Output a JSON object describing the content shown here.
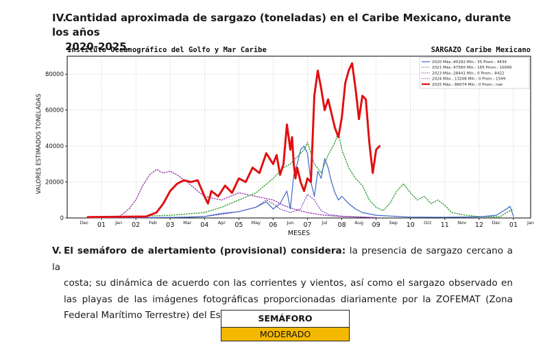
{
  "section_iv": {
    "number": "IV.",
    "title_line1": "Cantidad aproximada de sargazo (toneladas) en el Caribe Mexicano, durante los años",
    "title_line2": "2020-2025."
  },
  "section_v": {
    "number": "V.",
    "bold_lead": "El semáforo de alertamiento (provisional) considera:",
    "text_line1_rest": "la presencia de sargazo cercano a la",
    "text_rest": "costa; su dinámica de acuerdo con las corrientes y vientos, así como el sargazo observado en las playas de las imágenes fotográficas proporcionadas diariamente por la ZOFEMAT (Zona Federal Marítimo Terrestre) del Estado de Quintana Roo."
  },
  "semaforo": {
    "header": "SEMÁFORO",
    "value": "MODERADO",
    "color": "#f5b800"
  },
  "chart_data": {
    "type": "line",
    "left_title": "Instituto Oceanográfico del Golfo y Mar Caribe",
    "right_title": "SARGAZO Caribe Mexicano",
    "xlabel": "MESES",
    "ylabel": "VALORES ESTIMADOS TONELADAS",
    "ylim": [
      0,
      90000
    ],
    "yticks": [
      0,
      20000,
      40000,
      60000,
      80000
    ],
    "xlim": [
      0,
      13.5
    ],
    "grid": true,
    "month_ticks": [
      {
        "x": 0.5,
        "num": "",
        "name": "Dec"
      },
      {
        "x": 1,
        "num": "01",
        "name": ""
      },
      {
        "x": 1.5,
        "num": "",
        "name": "Jan"
      },
      {
        "x": 2,
        "num": "02",
        "name": ""
      },
      {
        "x": 2.5,
        "num": "",
        "name": "Feb"
      },
      {
        "x": 3,
        "num": "03",
        "name": ""
      },
      {
        "x": 3.5,
        "num": "",
        "name": "Mar"
      },
      {
        "x": 4,
        "num": "04",
        "name": ""
      },
      {
        "x": 4.5,
        "num": "",
        "name": "Apr"
      },
      {
        "x": 5,
        "num": "05",
        "name": ""
      },
      {
        "x": 5.5,
        "num": "",
        "name": "May"
      },
      {
        "x": 6,
        "num": "06",
        "name": ""
      },
      {
        "x": 6.5,
        "num": "",
        "name": "Jun"
      },
      {
        "x": 7,
        "num": "07",
        "name": ""
      },
      {
        "x": 7.5,
        "num": "",
        "name": "Jul"
      },
      {
        "x": 8,
        "num": "08",
        "name": ""
      },
      {
        "x": 8.5,
        "num": "",
        "name": "Aug"
      },
      {
        "x": 9,
        "num": "09",
        "name": ""
      },
      {
        "x": 9.5,
        "num": "",
        "name": "Sep"
      },
      {
        "x": 10,
        "num": "10",
        "name": ""
      },
      {
        "x": 10.5,
        "num": "",
        "name": "Oct"
      },
      {
        "x": 11,
        "num": "11",
        "name": ""
      },
      {
        "x": 11.5,
        "num": "",
        "name": "Nov"
      },
      {
        "x": 12,
        "num": "12",
        "name": ""
      },
      {
        "x": 12.5,
        "num": "",
        "name": "Dec"
      },
      {
        "x": 13,
        "num": "01",
        "name": ""
      },
      {
        "x": 13.5,
        "num": "",
        "name": "Jan"
      }
    ],
    "legend_position": "top-right",
    "series": [
      {
        "name": "2020 Máx.:40292  Mín.: 35  Prom.: 4434",
        "color": "#3a66c4",
        "style": "solid",
        "width": 1.2,
        "points": [
          [
            0.6,
            100
          ],
          [
            2.5,
            200
          ],
          [
            3.5,
            400
          ],
          [
            4.0,
            800
          ],
          [
            4.5,
            2500
          ],
          [
            5.0,
            3500
          ],
          [
            5.5,
            6000
          ],
          [
            5.8,
            9000
          ],
          [
            6.0,
            5000
          ],
          [
            6.2,
            8000
          ],
          [
            6.4,
            15000
          ],
          [
            6.5,
            5000
          ],
          [
            6.6,
            24000
          ],
          [
            6.7,
            30000
          ],
          [
            6.8,
            38000
          ],
          [
            6.9,
            40000
          ],
          [
            7.0,
            36000
          ],
          [
            7.1,
            20000
          ],
          [
            7.2,
            12000
          ],
          [
            7.3,
            26000
          ],
          [
            7.4,
            22000
          ],
          [
            7.5,
            33000
          ],
          [
            7.6,
            28000
          ],
          [
            7.7,
            20000
          ],
          [
            7.8,
            14000
          ],
          [
            7.9,
            10000
          ],
          [
            8.0,
            12000
          ],
          [
            8.2,
            8000
          ],
          [
            8.4,
            5000
          ],
          [
            8.6,
            3000
          ],
          [
            9.0,
            1500
          ],
          [
            10.0,
            500
          ],
          [
            11.0,
            400
          ],
          [
            12.0,
            600
          ],
          [
            12.5,
            1500
          ],
          [
            12.8,
            5000
          ],
          [
            12.9,
            6500
          ],
          [
            13.0,
            800
          ]
        ]
      },
      {
        "name": "2021 Máx.:47560  Mín.: 165  Prom.: 10099",
        "color": "#2e9a2e",
        "style": "dotted",
        "width": 1.4,
        "points": [
          [
            0.6,
            500
          ],
          [
            2.0,
            800
          ],
          [
            3.0,
            1500
          ],
          [
            4.0,
            3000
          ],
          [
            4.5,
            6000
          ],
          [
            5.0,
            10000
          ],
          [
            5.5,
            14000
          ],
          [
            6.0,
            22000
          ],
          [
            6.3,
            28000
          ],
          [
            6.5,
            30000
          ],
          [
            6.7,
            34000
          ],
          [
            6.9,
            38000
          ],
          [
            7.0,
            42000
          ],
          [
            7.2,
            30000
          ],
          [
            7.4,
            25000
          ],
          [
            7.6,
            35000
          ],
          [
            7.8,
            42000
          ],
          [
            7.9,
            47560
          ],
          [
            8.0,
            38000
          ],
          [
            8.2,
            28000
          ],
          [
            8.4,
            22000
          ],
          [
            8.6,
            18000
          ],
          [
            8.8,
            10000
          ],
          [
            9.0,
            6000
          ],
          [
            9.2,
            4000
          ],
          [
            9.4,
            8000
          ],
          [
            9.6,
            15000
          ],
          [
            9.8,
            19000
          ],
          [
            10.0,
            14000
          ],
          [
            10.2,
            10000
          ],
          [
            10.4,
            12000
          ],
          [
            10.6,
            8000
          ],
          [
            10.8,
            10000
          ],
          [
            11.0,
            7000
          ],
          [
            11.2,
            3000
          ],
          [
            11.6,
            1500
          ],
          [
            12.0,
            800
          ],
          [
            12.6,
            600
          ],
          [
            12.8,
            3000
          ],
          [
            13.0,
            5000
          ]
        ]
      },
      {
        "name": "2023 Máx.:28441  Mín.: 0  Prom.: 8422",
        "color": "#9a2fa8",
        "style": "dotted",
        "width": 1.4,
        "points": [
          [
            0.6,
            0
          ],
          [
            1.5,
            500
          ],
          [
            1.8,
            5000
          ],
          [
            2.0,
            10000
          ],
          [
            2.2,
            18000
          ],
          [
            2.4,
            24000
          ],
          [
            2.6,
            27000
          ],
          [
            2.8,
            25000
          ],
          [
            3.0,
            26000
          ],
          [
            3.2,
            24000
          ],
          [
            3.5,
            20000
          ],
          [
            3.8,
            15000
          ],
          [
            4.0,
            12000
          ],
          [
            4.5,
            10000
          ],
          [
            5.0,
            14000
          ],
          [
            5.5,
            12000
          ],
          [
            6.0,
            10000
          ],
          [
            6.3,
            7000
          ],
          [
            6.6,
            5000
          ],
          [
            7.0,
            3000
          ],
          [
            7.5,
            1500
          ],
          [
            8.0,
            800
          ],
          [
            9.0,
            200
          ]
        ]
      },
      {
        "name": "2024 Máx.: 13208  Mín.: 0  Prom.: 1599",
        "color": "#7b3fb0",
        "style": "dotted",
        "width": 1.2,
        "points": [
          [
            0.6,
            0
          ],
          [
            2.0,
            100
          ],
          [
            3.0,
            300
          ],
          [
            4.0,
            800
          ],
          [
            4.5,
            2000
          ],
          [
            5.0,
            3500
          ],
          [
            5.5,
            6000
          ],
          [
            5.8,
            10000
          ],
          [
            6.0,
            8000
          ],
          [
            6.2,
            5000
          ],
          [
            6.5,
            3000
          ],
          [
            6.8,
            5000
          ],
          [
            7.0,
            13208
          ],
          [
            7.2,
            10000
          ],
          [
            7.4,
            4000
          ],
          [
            7.6,
            2000
          ],
          [
            8.0,
            1000
          ],
          [
            9.0,
            200
          ]
        ]
      },
      {
        "name": "2025 Máx.: 86074  Mín.: 0  Prom.: nan",
        "color": "#e01010",
        "style": "solid",
        "width": 3,
        "points": [
          [
            0.6,
            500
          ],
          [
            2.3,
            800
          ],
          [
            2.6,
            3000
          ],
          [
            2.8,
            8000
          ],
          [
            3.0,
            15000
          ],
          [
            3.2,
            19000
          ],
          [
            3.4,
            21000
          ],
          [
            3.6,
            20000
          ],
          [
            3.8,
            21000
          ],
          [
            4.0,
            12000
          ],
          [
            4.1,
            8000
          ],
          [
            4.2,
            15000
          ],
          [
            4.4,
            12000
          ],
          [
            4.6,
            18000
          ],
          [
            4.8,
            14000
          ],
          [
            5.0,
            22000
          ],
          [
            5.2,
            20000
          ],
          [
            5.4,
            28000
          ],
          [
            5.6,
            25000
          ],
          [
            5.8,
            36000
          ],
          [
            6.0,
            30000
          ],
          [
            6.1,
            35000
          ],
          [
            6.2,
            24000
          ],
          [
            6.3,
            30000
          ],
          [
            6.4,
            52000
          ],
          [
            6.5,
            38000
          ],
          [
            6.55,
            45000
          ],
          [
            6.6,
            30000
          ],
          [
            6.65,
            22000
          ],
          [
            6.7,
            28000
          ],
          [
            6.8,
            20000
          ],
          [
            6.9,
            15000
          ],
          [
            7.0,
            22000
          ],
          [
            7.1,
            20000
          ],
          [
            7.2,
            68000
          ],
          [
            7.3,
            82000
          ],
          [
            7.4,
            72000
          ],
          [
            7.5,
            60000
          ],
          [
            7.6,
            66000
          ],
          [
            7.7,
            58000
          ],
          [
            7.8,
            50000
          ],
          [
            7.9,
            45000
          ],
          [
            8.0,
            56000
          ],
          [
            8.1,
            75000
          ],
          [
            8.2,
            82000
          ],
          [
            8.3,
            86074
          ],
          [
            8.4,
            72000
          ],
          [
            8.5,
            55000
          ],
          [
            8.6,
            68000
          ],
          [
            8.7,
            66000
          ],
          [
            8.8,
            42000
          ],
          [
            8.9,
            25000
          ],
          [
            9.0,
            38000
          ],
          [
            9.1,
            40000
          ]
        ]
      }
    ]
  }
}
